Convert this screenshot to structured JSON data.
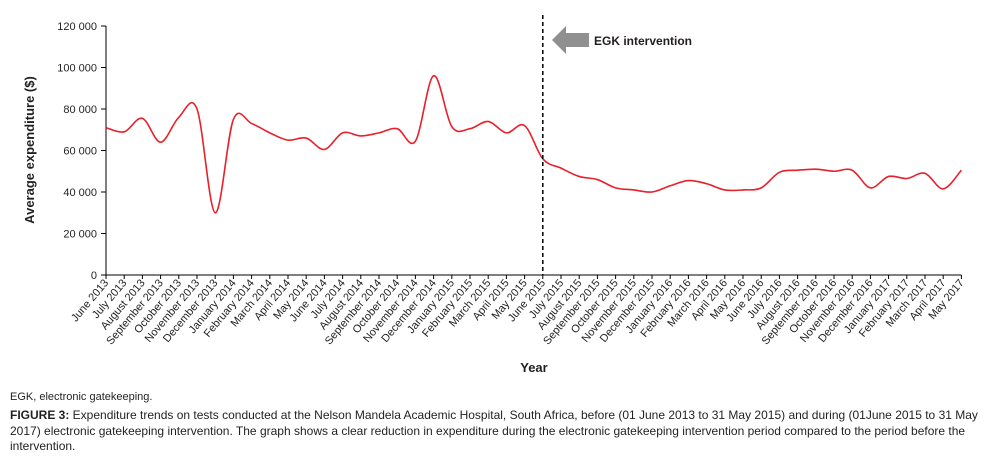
{
  "chart_data": {
    "type": "line",
    "title": "",
    "xlabel": "Year",
    "ylabel": "Average expenditure ($)",
    "ylim": [
      0,
      120000
    ],
    "yticks": [
      "0",
      "20 000",
      "40 000",
      "60 000",
      "80 000",
      "100 000",
      "120 000"
    ],
    "ytick_values": [
      0,
      20000,
      40000,
      60000,
      80000,
      100000,
      120000
    ],
    "grid": false,
    "categories": [
      "June 2013",
      "July 2013",
      "August 2013",
      "September 2013",
      "October 2013",
      "November 2013",
      "December 2013",
      "January 2014",
      "February 2014",
      "March 2014",
      "April 2014",
      "May 2014",
      "June 2014",
      "July 2014",
      "August 2014",
      "September 2014",
      "October 2014",
      "November 2014",
      "December 2014",
      "January 2015",
      "February 2015",
      "March 2015",
      "April 2015",
      "May 2015",
      "June 2015",
      "July 2015",
      "August 2015",
      "September 2015",
      "October 2015",
      "November 2015",
      "December 2015",
      "January 2016",
      "February 2016",
      "March 2016",
      "April 2016",
      "May 2016",
      "June 2016",
      "July 2016",
      "August 2016",
      "September 2016",
      "October 2016",
      "November 2016",
      "December 2016",
      "January 2017",
      "February 2017",
      "March 2017",
      "April 2017",
      "May 2017"
    ],
    "series": [
      {
        "name": "Average expenditure",
        "color": "#e8202a",
        "values": [
          71000,
          69000,
          75500,
          64000,
          76000,
          80000,
          30000,
          75000,
          73000,
          68500,
          65000,
          66000,
          60500,
          68500,
          67000,
          68500,
          70500,
          64500,
          96000,
          71500,
          70500,
          74000,
          68500,
          72000,
          56000,
          51500,
          47500,
          46000,
          42000,
          41000,
          40000,
          43000,
          45500,
          44000,
          41000,
          41000,
          42000,
          49500,
          50500,
          51000,
          50000,
          50500,
          42000,
          47500,
          46500,
          49000,
          41500,
          50500
        ]
      }
    ],
    "annotations": [
      {
        "type": "vline",
        "category": "June 2015",
        "style": "dashed"
      },
      {
        "type": "arrow-label",
        "text": "EGK intervention"
      }
    ]
  },
  "footnote": "EGK, electronic gatekeeping.",
  "caption": {
    "label": "FIGURE 3:",
    "text": " Expenditure trends on tests conducted at the Nelson Mandela Academic Hospital, South Africa, before (01 June 2013 to 31 May 2015) and during (01June 2015 to 31 May 2017) electronic gatekeeping intervention. The graph shows a clear reduction in expenditure during the electronic gatekeeping intervention period compared to the period before the intervention."
  }
}
